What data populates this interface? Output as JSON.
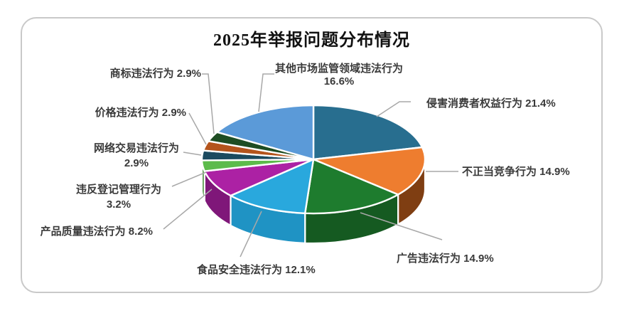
{
  "chart_data": {
    "type": "pie",
    "title": "2025年举报问题分布情况",
    "direction": "clockwise",
    "start_angle_deg": 0,
    "labels_show_percent": true,
    "legend_position": "none",
    "series": [
      {
        "label": "侵害消费者权益行为",
        "value": 21.4,
        "percent_text": "21.4%",
        "color": "#286e8f",
        "side_color": "#1d5370"
      },
      {
        "label": "不正当竞争行为",
        "value": 14.9,
        "percent_text": "14.9%",
        "color": "#ee7d2f",
        "side_color": "#7f3e12"
      },
      {
        "label": "广告违法行为",
        "value": 14.9,
        "percent_text": "14.9%",
        "color": "#1e7c2e",
        "side_color": "#155a21"
      },
      {
        "label": "食品安全违法行为",
        "value": 12.1,
        "percent_text": "12.1%",
        "color": "#29a8dd",
        "side_color": "#1f93c4"
      },
      {
        "label": "产品质量违法行为",
        "value": 8.2,
        "percent_text": "8.2%",
        "color": "#ac21a4",
        "side_color": "#7f1779"
      },
      {
        "label": "违反登记管理行为",
        "value": 3.2,
        "percent_text": "3.2%",
        "color": "#5cbb4b",
        "side_color": "#418c34"
      },
      {
        "label": "网络交易违法行为",
        "value": 2.9,
        "percent_text": "2.9%",
        "color": "#1b4a5f",
        "side_color": "#12313f"
      },
      {
        "label": "价格违法行为",
        "value": 2.9,
        "percent_text": "2.9%",
        "color": "#b4541c",
        "side_color": "#7e3a12"
      },
      {
        "label": "商标违法行为",
        "value": 2.9,
        "percent_text": "2.9%",
        "color": "#1e4d23",
        "side_color": "#143418"
      },
      {
        "label": "其他市场监管领域违法行为",
        "value": 16.6,
        "percent_text": "16.6%",
        "color": "#5b9ad8",
        "side_color": "#3f78ab"
      }
    ]
  },
  "style": {
    "background": "#ffffff",
    "frame_border_color": "#c9c9c9",
    "leader_line_color": "#a8a8a8",
    "label_color": "#3a3a3a",
    "slice_divider_color": "#ffffff",
    "title_color": "#111111"
  }
}
